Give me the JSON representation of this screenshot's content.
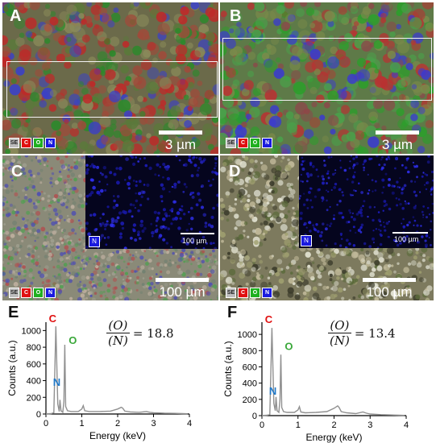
{
  "panels": {
    "a": {
      "label": "A",
      "scale": "3 µm",
      "chips": [
        "SE",
        "C",
        "O",
        "N"
      ]
    },
    "b": {
      "label": "B",
      "scale": "3 µm",
      "chips": [
        "SE",
        "C",
        "O",
        "N"
      ]
    },
    "c": {
      "label": "C",
      "scale": "100 µm",
      "chips": [
        "SE",
        "C",
        "O",
        "N"
      ],
      "inset_scale": "100 µm",
      "inset_chip": "N"
    },
    "d": {
      "label": "D",
      "scale": "100 µm",
      "chips": [
        "SE",
        "C",
        "O",
        "N"
      ],
      "inset_scale": "100 µm",
      "inset_chip": "N"
    },
    "e": {
      "label": "E",
      "ratio_num": "(O)",
      "ratio_den": "(N)",
      "ratio_value": "= 18.8"
    },
    "f": {
      "label": "F",
      "ratio_num": "(O)",
      "ratio_den": "(N)",
      "ratio_value": "= 13.4"
    }
  },
  "colors": {
    "C": "#e01010",
    "O": "#3aa83a",
    "N": "#1f78c8",
    "SE": "#cccccc",
    "line": "#909090"
  },
  "chart_data": [
    {
      "type": "line",
      "panel": "E",
      "xlabel": "Energy (keV)",
      "ylabel": "Counts (a.u.)",
      "xlim": [
        0,
        4
      ],
      "ylim": [
        0,
        1100
      ],
      "xticks": [
        0,
        1,
        2,
        3,
        4
      ],
      "yticks": [
        0,
        200,
        400,
        600,
        800,
        1000
      ],
      "peak_labels": [
        {
          "text": "C",
          "x": 0.277,
          "y": 1060,
          "color": "#e01010"
        },
        {
          "text": "N",
          "x": 0.392,
          "y": 300,
          "color": "#1f78c8"
        },
        {
          "text": "O",
          "x": 0.525,
          "y": 800,
          "color": "#3aa83a"
        }
      ],
      "x": [
        0.0,
        0.15,
        0.22,
        0.277,
        0.33,
        0.37,
        0.392,
        0.42,
        0.47,
        0.5,
        0.525,
        0.55,
        0.6,
        0.7,
        0.9,
        1.0,
        1.04,
        1.08,
        1.2,
        1.5,
        1.8,
        2.0,
        2.1,
        2.14,
        2.2,
        2.35,
        2.6,
        2.8,
        2.9,
        3.0,
        3.3,
        3.6,
        3.8,
        3.95
      ],
      "y": [
        0,
        5,
        15,
        1050,
        120,
        30,
        170,
        40,
        20,
        150,
        830,
        90,
        40,
        30,
        30,
        60,
        100,
        40,
        30,
        30,
        35,
        60,
        80,
        70,
        35,
        25,
        20,
        30,
        20,
        15,
        10,
        8,
        5,
        3
      ]
    },
    {
      "type": "line",
      "panel": "F",
      "xlabel": "Energy (keV)",
      "ylabel": "Counts (a.u.)",
      "xlim": [
        0,
        4
      ],
      "ylim": [
        0,
        1150
      ],
      "xticks": [
        0,
        1,
        2,
        3,
        4
      ],
      "yticks": [
        0,
        200,
        400,
        600,
        800,
        1000
      ],
      "peak_labels": [
        {
          "text": "C",
          "x": 0.277,
          "y": 1100,
          "color": "#e01010"
        },
        {
          "text": "N",
          "x": 0.392,
          "y": 220,
          "color": "#1f78c8"
        },
        {
          "text": "O",
          "x": 0.525,
          "y": 770,
          "color": "#3aa83a"
        }
      ],
      "x": [
        0.0,
        0.15,
        0.22,
        0.277,
        0.33,
        0.37,
        0.392,
        0.42,
        0.47,
        0.5,
        0.525,
        0.55,
        0.6,
        0.7,
        0.9,
        1.0,
        1.04,
        1.08,
        1.2,
        1.5,
        1.8,
        2.0,
        2.1,
        2.14,
        2.2,
        2.35,
        2.6,
        2.8,
        2.9,
        3.0,
        3.3,
        3.6,
        3.8,
        3.95
      ],
      "y": [
        0,
        5,
        15,
        1080,
        150,
        60,
        230,
        60,
        40,
        200,
        750,
        100,
        50,
        40,
        40,
        70,
        110,
        45,
        35,
        40,
        50,
        90,
        120,
        100,
        50,
        35,
        25,
        45,
        30,
        20,
        12,
        8,
        5,
        3
      ]
    }
  ]
}
